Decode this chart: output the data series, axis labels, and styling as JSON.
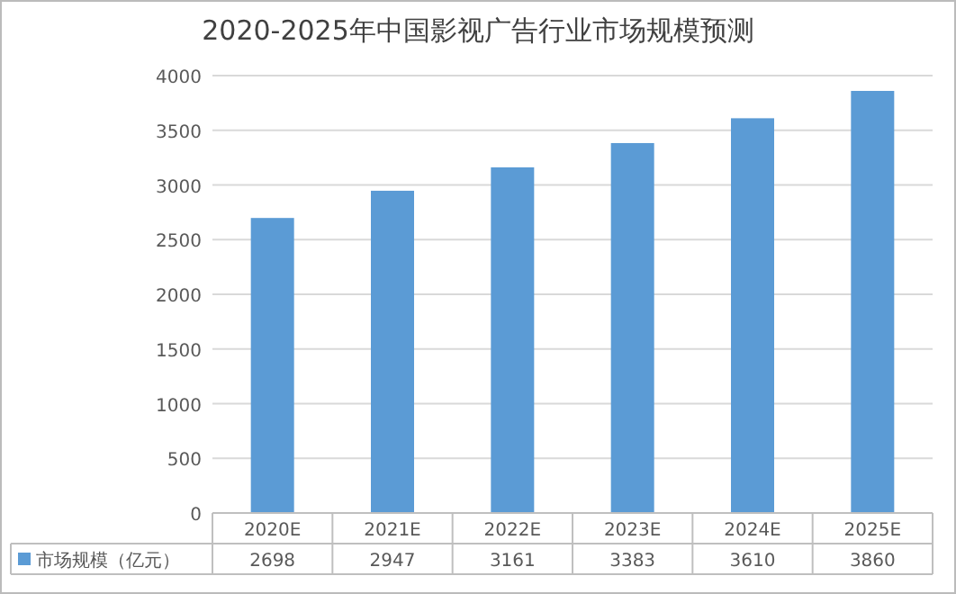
{
  "chart_data": {
    "type": "bar",
    "title": "2020-2025年中国影视广告行业市场规模预测",
    "categories": [
      "2020E",
      "2021E",
      "2022E",
      "2023E",
      "2024E",
      "2025E"
    ],
    "series": [
      {
        "name": "市场规模（亿元）",
        "color": "#5b9bd5",
        "values": [
          2698,
          2947,
          3161,
          3383,
          3610,
          3860
        ]
      }
    ],
    "ylim": [
      0,
      4000
    ],
    "yticks": [
      0,
      500,
      1000,
      1500,
      2000,
      2500,
      3000,
      3500,
      4000
    ],
    "grid": "y",
    "legend": "bottom",
    "data_labels": true
  }
}
